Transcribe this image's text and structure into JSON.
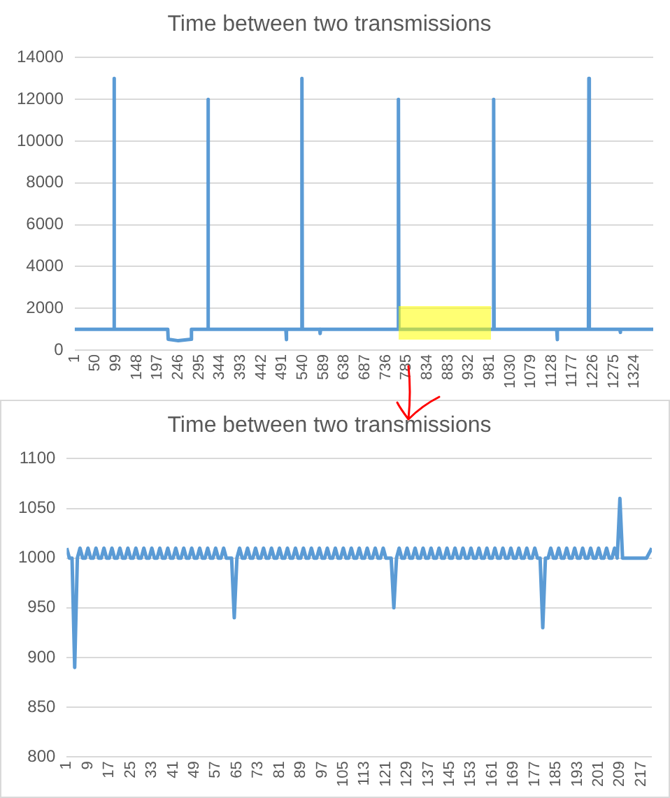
{
  "chart_data": [
    {
      "type": "line",
      "title": "Time between two transmissions",
      "xlim": [
        1,
        1368
      ],
      "xticks": [
        1,
        50,
        99,
        148,
        197,
        246,
        295,
        344,
        393,
        442,
        491,
        540,
        589,
        638,
        687,
        736,
        785,
        834,
        883,
        932,
        981,
        1030,
        1079,
        1128,
        1177,
        1226,
        1275,
        1324
      ],
      "ylim": [
        0,
        14000
      ],
      "yticks": [
        0,
        2000,
        4000,
        6000,
        8000,
        10000,
        12000,
        14000
      ],
      "grid": "y",
      "marker": "none",
      "series": [
        {
          "color": "#5b9bd5",
          "x": [
            1,
            93,
            94,
            95,
            221,
            222,
            246,
            276,
            277,
            315,
            316,
            317,
            500,
            501,
            502,
            537,
            538,
            539,
            580,
            581,
            582,
            765,
            766,
            767,
            990,
            991,
            992,
            1140,
            1141,
            1142,
            1215,
            1216,
            1217,
            1289,
            1290,
            1291,
            1368
          ],
          "values": [
            1000,
            1000,
            13000,
            1000,
            1000,
            520,
            450,
            520,
            1000,
            1000,
            12000,
            1000,
            1000,
            500,
            1000,
            1000,
            13000,
            1000,
            1000,
            800,
            1000,
            1000,
            12000,
            1000,
            1000,
            12000,
            1000,
            1000,
            500,
            1000,
            1000,
            13000,
            1000,
            1000,
            850,
            1000,
            1000
          ]
        }
      ]
    },
    {
      "type": "line",
      "title": "Time between two transmissions",
      "xlim": [
        1,
        221
      ],
      "xticks": [
        1,
        9,
        17,
        25,
        33,
        41,
        49,
        57,
        65,
        73,
        81,
        89,
        97,
        105,
        113,
        121,
        129,
        137,
        145,
        153,
        161,
        169,
        177,
        185,
        193,
        201,
        209,
        217
      ],
      "ylim": [
        800,
        1100
      ],
      "yticks": [
        800,
        850,
        900,
        950,
        1000,
        1050,
        1100
      ],
      "grid": "y",
      "marker": "none",
      "series": [
        {
          "color": "#5b9bd5",
          "x": [
            1,
            2,
            3,
            4,
            5,
            6,
            7,
            8,
            9,
            10,
            11,
            12,
            13,
            14,
            15,
            16,
            17,
            18,
            19,
            20,
            21,
            22,
            23,
            24,
            25,
            26,
            27,
            28,
            29,
            30,
            31,
            32,
            33,
            34,
            35,
            36,
            37,
            38,
            39,
            40,
            41,
            42,
            43,
            44,
            45,
            46,
            47,
            48,
            49,
            50,
            51,
            52,
            53,
            54,
            55,
            56,
            57,
            58,
            59,
            60,
            61,
            62,
            63,
            64,
            65,
            66,
            67,
            68,
            69,
            70,
            71,
            72,
            73,
            74,
            75,
            76,
            77,
            78,
            79,
            80,
            81,
            82,
            83,
            84,
            85,
            86,
            87,
            88,
            89,
            90,
            91,
            92,
            93,
            94,
            95,
            96,
            97,
            98,
            99,
            100,
            101,
            102,
            103,
            104,
            105,
            106,
            107,
            108,
            109,
            110,
            111,
            112,
            113,
            114,
            115,
            116,
            117,
            118,
            119,
            120,
            121,
            122,
            123,
            124,
            125,
            126,
            127,
            128,
            129,
            130,
            131,
            132,
            133,
            134,
            135,
            136,
            137,
            138,
            139,
            140,
            141,
            142,
            143,
            144,
            145,
            146,
            147,
            148,
            149,
            150,
            151,
            152,
            153,
            154,
            155,
            156,
            157,
            158,
            159,
            160,
            161,
            162,
            163,
            164,
            165,
            166,
            167,
            168,
            169,
            170,
            171,
            172,
            173,
            174,
            175,
            176,
            177,
            178,
            179,
            180,
            181,
            182,
            183,
            184,
            185,
            186,
            187,
            188,
            189,
            190,
            191,
            192,
            193,
            194,
            195,
            196,
            197,
            198,
            199,
            200,
            201,
            202,
            203,
            204,
            205,
            206,
            207,
            208,
            209,
            210,
            211,
            212,
            213,
            214,
            215,
            216,
            217,
            218,
            219,
            220,
            221
          ],
          "values": [
            1010,
            1000,
            1000,
            890,
            1000,
            1010,
            1000,
            1000,
            1010,
            1000,
            1000,
            1010,
            1000,
            1000,
            1010,
            1000,
            1000,
            1010,
            1000,
            1000,
            1010,
            1000,
            1000,
            1010,
            1000,
            1000,
            1010,
            1000,
            1000,
            1010,
            1000,
            1000,
            1010,
            1000,
            1000,
            1010,
            1000,
            1000,
            1010,
            1000,
            1000,
            1010,
            1000,
            1000,
            1010,
            1000,
            1000,
            1010,
            1000,
            1000,
            1010,
            1000,
            1000,
            1010,
            1000,
            1000,
            1010,
            1000,
            1000,
            1010,
            1000,
            1000,
            1000,
            940,
            1000,
            1010,
            1000,
            1000,
            1010,
            1000,
            1000,
            1010,
            1000,
            1000,
            1010,
            1000,
            1000,
            1010,
            1000,
            1000,
            1010,
            1000,
            1000,
            1010,
            1000,
            1000,
            1010,
            1000,
            1000,
            1010,
            1000,
            1000,
            1010,
            1000,
            1000,
            1010,
            1000,
            1000,
            1010,
            1000,
            1000,
            1010,
            1000,
            1000,
            1010,
            1000,
            1000,
            1010,
            1000,
            1000,
            1010,
            1000,
            1000,
            1010,
            1000,
            1000,
            1010,
            1000,
            1000,
            1010,
            1000,
            1000,
            1000,
            950,
            1000,
            1010,
            1000,
            1000,
            1010,
            1000,
            1000,
            1010,
            1000,
            1000,
            1010,
            1000,
            1000,
            1010,
            1000,
            1000,
            1010,
            1000,
            1000,
            1010,
            1000,
            1000,
            1010,
            1000,
            1000,
            1010,
            1000,
            1000,
            1010,
            1000,
            1000,
            1010,
            1000,
            1000,
            1010,
            1000,
            1000,
            1010,
            1000,
            1000,
            1010,
            1000,
            1000,
            1010,
            1000,
            1000,
            1010,
            1000,
            1000,
            1010,
            1000,
            1000,
            1010,
            1000,
            1000,
            930,
            1000,
            1000,
            1010,
            1000,
            1000,
            1010,
            1000,
            1000,
            1010,
            1000,
            1000,
            1010,
            1000,
            1000,
            1010,
            1000,
            1000,
            1010,
            1000,
            1000,
            1010,
            1000,
            1000,
            1010,
            1000,
            1000,
            1010,
            1000,
            1060,
            1000,
            1000,
            1000,
            1000,
            1000,
            1000,
            1000,
            1000,
            1000,
            1000,
            1005,
            1010
          ]
        }
      ]
    }
  ]
}
